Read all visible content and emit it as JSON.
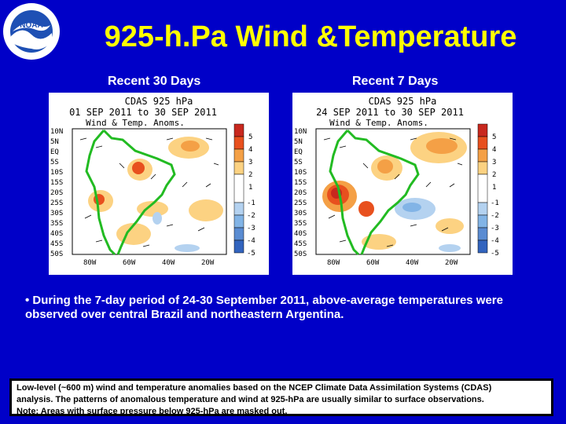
{
  "slide": {
    "title": "925-h.Pa Wind &Temperature",
    "logo_text": "NOAA",
    "panels": [
      {
        "label": "Recent 30 Days",
        "map_title": [
          "CDAS 925 hPa",
          "01 SEP 2011 to 30 SEP 2011",
          "Wind & Temp. Anoms."
        ]
      },
      {
        "label": "Recent 7 Days",
        "map_title": [
          "CDAS 925 hPa",
          "24 SEP 2011 to 30 SEP 2011",
          "Wind & Temp. Anoms."
        ]
      }
    ],
    "lat_labels": [
      "10N",
      "5N",
      "EQ",
      "5S",
      "10S",
      "15S",
      "20S",
      "25S",
      "30S",
      "35S",
      "40S",
      "45S",
      "50S"
    ],
    "lon_labels": [
      "80W",
      "60W",
      "40W",
      "20W"
    ],
    "colorbar": [
      {
        "label": "5",
        "color": "#c8281e"
      },
      {
        "label": "4",
        "color": "#e8501e"
      },
      {
        "label": "3",
        "color": "#f4a046"
      },
      {
        "label": "2",
        "color": "#fcd282"
      },
      {
        "label": "1",
        "color": "#ffffff"
      },
      {
        "label": "-1",
        "color": "#ffffff"
      },
      {
        "label": "-2",
        "color": "#b4d2f0"
      },
      {
        "label": "-3",
        "color": "#82b4e6"
      },
      {
        "label": "-4",
        "color": "#5a8cd2"
      },
      {
        "label": "-5",
        "color": "#3264be"
      }
    ],
    "bullet": "• During the 7-day period of 24-30 September 2011, above-average temperatures were observed over central  Brazil and northeastern Argentina.",
    "note": {
      "line1": "Low-level (~600 m) wind and temperature anomalies based on the NCEP Climate Data Assimilation Systems (CDAS)",
      "line2": "analysis. The patterns of anomalous temperature and wind at 925-hPa are usually similar to surface observations.",
      "note_label": "Note:",
      "note_text": " Areas with surface pressure below 925-hPa are masked out."
    }
  }
}
